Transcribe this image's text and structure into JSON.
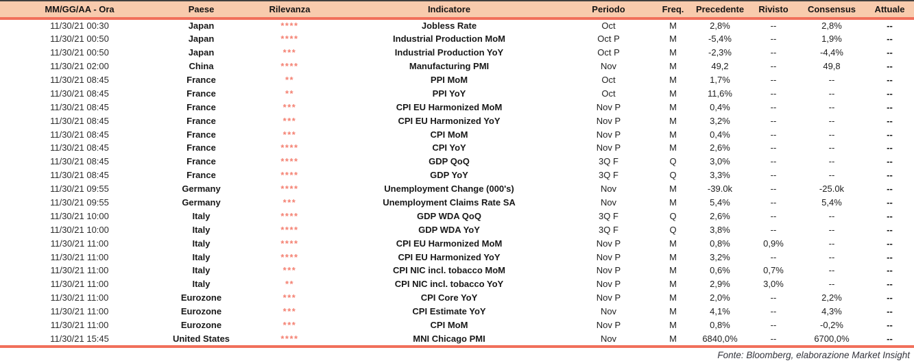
{
  "table": {
    "columns": [
      {
        "key": "date",
        "label": "MM/GG/AA - Ora"
      },
      {
        "key": "country",
        "label": "Paese"
      },
      {
        "key": "relevance",
        "label": "Rilevanza"
      },
      {
        "key": "indicator",
        "label": "Indicatore"
      },
      {
        "key": "period",
        "label": "Periodo"
      },
      {
        "key": "freq",
        "label": "Freq."
      },
      {
        "key": "previous",
        "label": "Precedente"
      },
      {
        "key": "revised",
        "label": "Rivisto"
      },
      {
        "key": "consensus",
        "label": "Consensus"
      },
      {
        "key": "actual",
        "label": "Attuale"
      }
    ],
    "rows": [
      {
        "date": "11/30/21 00:30",
        "country": "Japan",
        "relevance": "****",
        "indicator": "Jobless Rate",
        "period": "Oct",
        "freq": "M",
        "previous": "2,8%",
        "revised": "--",
        "consensus": "2,8%",
        "actual": "--"
      },
      {
        "date": "11/30/21 00:50",
        "country": "Japan",
        "relevance": "****",
        "indicator": "Industrial Production MoM",
        "period": "Oct P",
        "freq": "M",
        "previous": "-5,4%",
        "revised": "--",
        "consensus": "1,9%",
        "actual": "--"
      },
      {
        "date": "11/30/21 00:50",
        "country": "Japan",
        "relevance": "***",
        "indicator": "Industrial Production YoY",
        "period": "Oct P",
        "freq": "M",
        "previous": "-2,3%",
        "revised": "--",
        "consensus": "-4,4%",
        "actual": "--"
      },
      {
        "date": "11/30/21 02:00",
        "country": "China",
        "relevance": "****",
        "indicator": "Manufacturing PMI",
        "period": "Nov",
        "freq": "M",
        "previous": "49,2",
        "revised": "--",
        "consensus": "49,8",
        "actual": "--"
      },
      {
        "date": "11/30/21 08:45",
        "country": "France",
        "relevance": "**",
        "indicator": "PPI MoM",
        "period": "Oct",
        "freq": "M",
        "previous": "1,7%",
        "revised": "--",
        "consensus": "--",
        "actual": "--"
      },
      {
        "date": "11/30/21 08:45",
        "country": "France",
        "relevance": "**",
        "indicator": "PPI YoY",
        "period": "Oct",
        "freq": "M",
        "previous": "11,6%",
        "revised": "--",
        "consensus": "--",
        "actual": "--"
      },
      {
        "date": "11/30/21 08:45",
        "country": "France",
        "relevance": "***",
        "indicator": "CPI EU Harmonized MoM",
        "period": "Nov P",
        "freq": "M",
        "previous": "0,4%",
        "revised": "--",
        "consensus": "--",
        "actual": "--"
      },
      {
        "date": "11/30/21 08:45",
        "country": "France",
        "relevance": "***",
        "indicator": "CPI EU Harmonized YoY",
        "period": "Nov P",
        "freq": "M",
        "previous": "3,2%",
        "revised": "--",
        "consensus": "--",
        "actual": "--"
      },
      {
        "date": "11/30/21 08:45",
        "country": "France",
        "relevance": "***",
        "indicator": "CPI MoM",
        "period": "Nov P",
        "freq": "M",
        "previous": "0,4%",
        "revised": "--",
        "consensus": "--",
        "actual": "--"
      },
      {
        "date": "11/30/21 08:45",
        "country": "France",
        "relevance": "****",
        "indicator": "CPI YoY",
        "period": "Nov P",
        "freq": "M",
        "previous": "2,6%",
        "revised": "--",
        "consensus": "--",
        "actual": "--"
      },
      {
        "date": "11/30/21 08:45",
        "country": "France",
        "relevance": "****",
        "indicator": "GDP QoQ",
        "period": "3Q F",
        "freq": "Q",
        "previous": "3,0%",
        "revised": "--",
        "consensus": "--",
        "actual": "--"
      },
      {
        "date": "11/30/21 08:45",
        "country": "France",
        "relevance": "****",
        "indicator": "GDP YoY",
        "period": "3Q F",
        "freq": "Q",
        "previous": "3,3%",
        "revised": "--",
        "consensus": "--",
        "actual": "--"
      },
      {
        "date": "11/30/21 09:55",
        "country": "Germany",
        "relevance": "****",
        "indicator": "Unemployment Change (000's)",
        "period": "Nov",
        "freq": "M",
        "previous": "-39.0k",
        "revised": "--",
        "consensus": "-25.0k",
        "actual": "--"
      },
      {
        "date": "11/30/21 09:55",
        "country": "Germany",
        "relevance": "***",
        "indicator": "Unemployment Claims Rate SA",
        "period": "Nov",
        "freq": "M",
        "previous": "5,4%",
        "revised": "--",
        "consensus": "5,4%",
        "actual": "--"
      },
      {
        "date": "11/30/21 10:00",
        "country": "Italy",
        "relevance": "****",
        "indicator": "GDP WDA QoQ",
        "period": "3Q F",
        "freq": "Q",
        "previous": "2,6%",
        "revised": "--",
        "consensus": "--",
        "actual": "--"
      },
      {
        "date": "11/30/21 10:00",
        "country": "Italy",
        "relevance": "****",
        "indicator": "GDP WDA YoY",
        "period": "3Q F",
        "freq": "Q",
        "previous": "3,8%",
        "revised": "--",
        "consensus": "--",
        "actual": "--"
      },
      {
        "date": "11/30/21 11:00",
        "country": "Italy",
        "relevance": "****",
        "indicator": "CPI EU Harmonized MoM",
        "period": "Nov P",
        "freq": "M",
        "previous": "0,8%",
        "revised": "0,9%",
        "consensus": "--",
        "actual": "--"
      },
      {
        "date": "11/30/21 11:00",
        "country": "Italy",
        "relevance": "****",
        "indicator": "CPI EU Harmonized YoY",
        "period": "Nov P",
        "freq": "M",
        "previous": "3,2%",
        "revised": "--",
        "consensus": "--",
        "actual": "--"
      },
      {
        "date": "11/30/21 11:00",
        "country": "Italy",
        "relevance": "***",
        "indicator": "CPI NIC incl. tobacco MoM",
        "period": "Nov P",
        "freq": "M",
        "previous": "0,6%",
        "revised": "0,7%",
        "consensus": "--",
        "actual": "--"
      },
      {
        "date": "11/30/21 11:00",
        "country": "Italy",
        "relevance": "**",
        "indicator": "CPI NIC incl. tobacco YoY",
        "period": "Nov P",
        "freq": "M",
        "previous": "2,9%",
        "revised": "3,0%",
        "consensus": "--",
        "actual": "--"
      },
      {
        "date": "11/30/21 11:00",
        "country": "Eurozone",
        "relevance": "***",
        "indicator": "CPI Core YoY",
        "period": "Nov P",
        "freq": "M",
        "previous": "2,0%",
        "revised": "--",
        "consensus": "2,2%",
        "actual": "--"
      },
      {
        "date": "11/30/21 11:00",
        "country": "Eurozone",
        "relevance": "***",
        "indicator": "CPI Estimate YoY",
        "period": "Nov",
        "freq": "M",
        "previous": "4,1%",
        "revised": "--",
        "consensus": "4,3%",
        "actual": "--"
      },
      {
        "date": "11/30/21 11:00",
        "country": "Eurozone",
        "relevance": "***",
        "indicator": "CPI MoM",
        "period": "Nov P",
        "freq": "M",
        "previous": "0,8%",
        "revised": "--",
        "consensus": "-0,2%",
        "actual": "--"
      },
      {
        "date": "11/30/21 15:45",
        "country": "United States",
        "relevance": "****",
        "indicator": "MNI Chicago PMI",
        "period": "Nov",
        "freq": "M",
        "previous": "6840,0%",
        "revised": "--",
        "consensus": "6700,0%",
        "actual": "--"
      }
    ]
  },
  "footer": {
    "source": "Fonte: Bloomberg, elaborazione Market Insight"
  },
  "colors": {
    "header_bg": "#F8CBAD",
    "accent_line": "#F1705B",
    "stars": "#F48172",
    "header_border": "#3F3F3F",
    "text": "#202020"
  }
}
